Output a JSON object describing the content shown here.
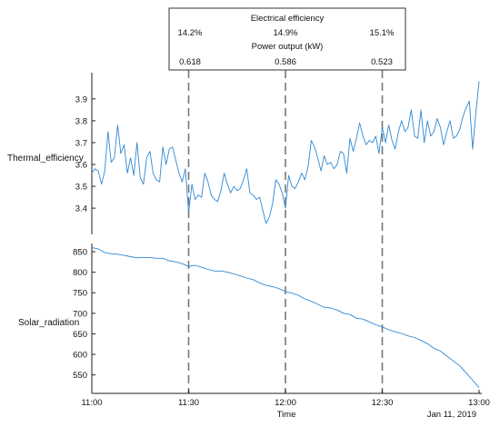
{
  "info_panel": {
    "electrical_title": "Electrical efficiency",
    "electrical_values": [
      "14.2%",
      "14.9%",
      "15.1%"
    ],
    "power_title": "Power output (kW)",
    "power_values": [
      "0.618",
      "0.586",
      "0.523"
    ]
  },
  "chart_data": [
    {
      "type": "line",
      "ylabel": "Thermal_efficiency",
      "ylim": [
        3.28,
        4.02
      ],
      "yticks": [
        "3.4",
        "3.5",
        "3.6",
        "3.7",
        "3.8",
        "3.9"
      ],
      "grid": false,
      "series": [
        {
          "color": "#2f88d2",
          "x_minutes": [
            0,
            1,
            2,
            3,
            4,
            5,
            6,
            7,
            8,
            9,
            10,
            11,
            12,
            13,
            14,
            15,
            16,
            17,
            18,
            19,
            20,
            21,
            22,
            23,
            24,
            25,
            26,
            27,
            28,
            29,
            30,
            31,
            32,
            33,
            34,
            35,
            36,
            37,
            38,
            39,
            40,
            41,
            42,
            43,
            44,
            45,
            46,
            47,
            48,
            49,
            50,
            51,
            52,
            53,
            54,
            55,
            56,
            57,
            58,
            59,
            60,
            61,
            62,
            63,
            64,
            65,
            66,
            67,
            68,
            69,
            70,
            71,
            72,
            73,
            74,
            75,
            76,
            77,
            78,
            79,
            80,
            81,
            82,
            83,
            84,
            85,
            86,
            87,
            88,
            89,
            90,
            91,
            92,
            93,
            94,
            95,
            96,
            97,
            98,
            99,
            100,
            101,
            102,
            103,
            104,
            105,
            106,
            107,
            108,
            109,
            110,
            111,
            112,
            113,
            114,
            115,
            116,
            117,
            118,
            119,
            120
          ],
          "values": [
            3.56,
            3.58,
            3.57,
            3.51,
            3.57,
            3.75,
            3.61,
            3.63,
            3.78,
            3.65,
            3.69,
            3.56,
            3.63,
            3.55,
            3.7,
            3.54,
            3.51,
            3.63,
            3.66,
            3.56,
            3.53,
            3.52,
            3.68,
            3.6,
            3.67,
            3.68,
            3.62,
            3.56,
            3.52,
            3.58,
            3.38,
            3.51,
            3.44,
            3.46,
            3.45,
            3.56,
            3.52,
            3.46,
            3.44,
            3.43,
            3.48,
            3.56,
            3.51,
            3.47,
            3.5,
            3.48,
            3.49,
            3.53,
            3.58,
            3.47,
            3.46,
            3.44,
            3.45,
            3.39,
            3.33,
            3.36,
            3.42,
            3.53,
            3.51,
            3.47,
            3.4,
            3.55,
            3.5,
            3.49,
            3.52,
            3.56,
            3.53,
            3.59,
            3.71,
            3.68,
            3.63,
            3.57,
            3.64,
            3.6,
            3.61,
            3.58,
            3.6,
            3.66,
            3.65,
            3.56,
            3.72,
            3.66,
            3.72,
            3.79,
            3.73,
            3.69,
            3.71,
            3.7,
            3.73,
            3.65,
            3.77,
            3.7,
            3.78,
            3.71,
            3.67,
            3.75,
            3.8,
            3.75,
            3.77,
            3.85,
            3.73,
            3.72,
            3.85,
            3.7,
            3.8,
            3.73,
            3.75,
            3.81,
            3.77,
            3.69,
            3.75,
            3.8,
            3.72,
            3.73,
            3.76,
            3.82,
            3.86,
            3.89,
            3.67,
            3.84,
            3.98
          ]
        }
      ]
    },
    {
      "type": "line",
      "ylabel": "Solar_radiation",
      "ylim": [
        505,
        870
      ],
      "yticks": [
        "550",
        "600",
        "650",
        "700",
        "750",
        "800",
        "850"
      ],
      "grid": false,
      "series": [
        {
          "color": "#2f88d2",
          "x_minutes": [
            0,
            2,
            4,
            6,
            8,
            10,
            12,
            14,
            16,
            18,
            20,
            22,
            24,
            26,
            28,
            30,
            32,
            34,
            36,
            38,
            40,
            42,
            44,
            46,
            48,
            50,
            52,
            54,
            56,
            58,
            60,
            62,
            64,
            66,
            68,
            70,
            72,
            74,
            76,
            78,
            80,
            82,
            84,
            86,
            88,
            90,
            92,
            94,
            96,
            98,
            100,
            102,
            104,
            106,
            108,
            110,
            112,
            114,
            116,
            118,
            120
          ],
          "values": [
            860,
            857,
            848,
            845,
            844,
            841,
            838,
            835,
            836,
            836,
            834,
            834,
            828,
            825,
            821,
            814,
            817,
            812,
            807,
            803,
            803,
            800,
            796,
            791,
            786,
            782,
            774,
            768,
            765,
            760,
            753,
            749,
            744,
            735,
            729,
            722,
            715,
            713,
            708,
            700,
            697,
            688,
            686,
            679,
            672,
            667,
            660,
            655,
            651,
            645,
            641,
            634,
            626,
            615,
            608,
            596,
            584,
            572,
            555,
            537,
            519
          ]
        }
      ]
    }
  ],
  "x_axis": {
    "ticks": [
      "11:00",
      "11:30",
      "12:00",
      "12:30",
      "13:00"
    ],
    "label": "Time",
    "date_label": "Jan 11, 2019"
  },
  "cursor_minutes": [
    30,
    60,
    90
  ]
}
